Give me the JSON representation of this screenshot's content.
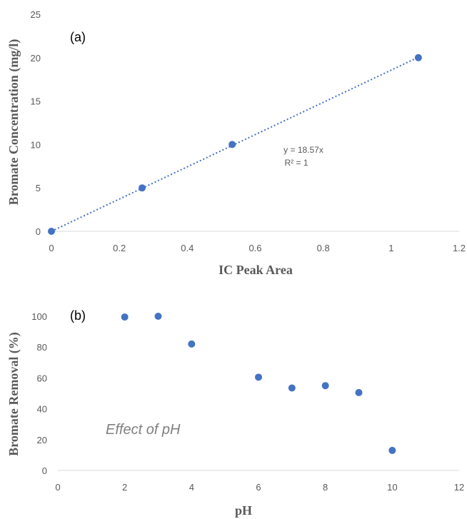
{
  "chart_data": [
    {
      "type": "scatter",
      "panel_label": "(a)",
      "xlabel": "IC Peak Area",
      "ylabel": "Bromate Concentration (mg/l)",
      "xlim": [
        0,
        1.2
      ],
      "ylim": [
        0,
        25
      ],
      "xticks": [
        "0",
        "0.2",
        "0.4",
        "0.6",
        "0.8",
        "1",
        "1.2"
      ],
      "yticks": [
        "0",
        "5",
        "10",
        "15",
        "20",
        "25"
      ],
      "grid": false,
      "series": [
        {
          "x": [
            0,
            0.267,
            0.532,
            1.08
          ],
          "y": [
            0,
            5,
            10,
            20
          ]
        }
      ],
      "trendline": {
        "type": "linear",
        "slope": 18.57,
        "intercept": 0,
        "style": "dotted"
      },
      "equation": "y = 18.57x",
      "r_squared": "R² = 1",
      "color": "#4472C4"
    },
    {
      "type": "scatter",
      "panel_label": "(b)",
      "xlabel": "pH",
      "ylabel": "Bromate Removal (%)",
      "xlim": [
        0,
        12
      ],
      "ylim": [
        0,
        100
      ],
      "xticks": [
        "0",
        "2",
        "4",
        "6",
        "8",
        "10",
        "12"
      ],
      "yticks": [
        "0",
        "20",
        "40",
        "60",
        "80",
        "100"
      ],
      "grid": false,
      "series": [
        {
          "x": [
            2,
            3,
            4,
            6,
            7,
            8,
            9,
            10
          ],
          "y": [
            99.5,
            100,
            82,
            60.5,
            53.5,
            55,
            50.5,
            13
          ]
        }
      ],
      "annotation": "Effect of pH",
      "color": "#4472C4"
    }
  ]
}
